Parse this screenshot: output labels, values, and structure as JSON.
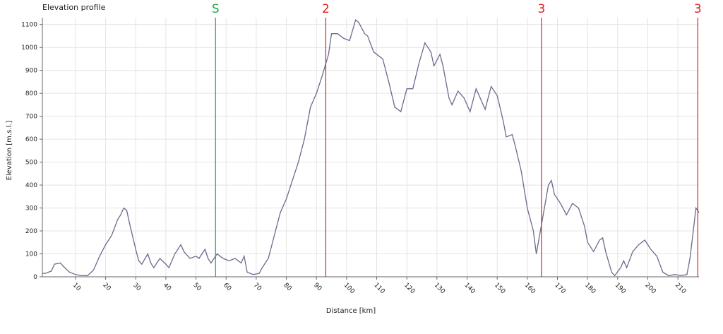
{
  "chart_data": {
    "type": "line",
    "title": "Elevation profile",
    "xlabel": "Distance [km]",
    "ylabel": "Elevation [m.s.l.]",
    "xlim": [
      -1,
      217
    ],
    "ylim": [
      0,
      1130
    ],
    "xticks": [
      10,
      20,
      30,
      40,
      50,
      60,
      70,
      80,
      90,
      100,
      110,
      120,
      130,
      140,
      150,
      160,
      170,
      180,
      190,
      200,
      210
    ],
    "yticks": [
      0,
      100,
      200,
      300,
      400,
      500,
      600,
      700,
      800,
      900,
      1000,
      1100
    ],
    "grid": true,
    "markers": [
      {
        "label": "S",
        "x": 56.5,
        "color": "#22aa44"
      },
      {
        "label": "2",
        "x": 93.1,
        "color": "#dd2222"
      },
      {
        "label": "3",
        "x": 164.7,
        "color": "#dd2222"
      },
      {
        "label": "3",
        "x": 216.6,
        "color": "#dd2222"
      }
    ],
    "series": [
      {
        "color": "#6a6a8e",
        "x": [
          -1,
          0,
          2,
          3,
          5,
          6,
          8,
          10,
          12,
          14,
          16,
          18,
          20,
          22,
          24,
          25,
          26,
          27,
          28,
          30,
          31,
          32,
          34,
          35,
          36,
          38,
          40,
          41,
          43,
          45,
          46,
          48,
          50,
          51,
          53,
          54,
          55,
          57,
          59,
          61,
          63,
          65,
          66,
          67,
          69,
          71,
          72,
          74,
          76,
          78,
          80,
          82,
          84,
          86,
          88,
          90,
          92,
          94,
          95,
          97,
          99,
          101,
          103,
          104,
          106,
          107,
          109,
          111,
          112,
          114,
          116,
          118,
          120,
          122,
          124,
          126,
          128,
          129,
          131,
          132,
          134,
          135,
          137,
          139,
          141,
          143,
          144,
          146,
          148,
          150,
          152,
          153,
          155,
          156,
          158,
          160,
          162,
          163,
          165,
          167,
          168,
          169,
          171,
          173,
          175,
          177,
          179,
          180,
          182,
          184,
          185,
          186,
          188,
          189,
          191,
          192,
          193,
          195,
          197,
          199,
          201,
          203,
          205,
          207,
          209,
          211,
          213,
          214,
          215,
          216,
          217
        ],
        "values": [
          15,
          15,
          25,
          55,
          60,
          45,
          20,
          10,
          5,
          5,
          30,
          90,
          140,
          180,
          250,
          270,
          300,
          290,
          230,
          120,
          70,
          55,
          100,
          60,
          40,
          80,
          55,
          40,
          100,
          140,
          110,
          80,
          90,
          80,
          120,
          80,
          60,
          100,
          80,
          70,
          80,
          60,
          90,
          20,
          10,
          15,
          40,
          80,
          180,
          280,
          340,
          420,
          500,
          600,
          740,
          800,
          880,
          970,
          1060,
          1060,
          1040,
          1030,
          1120,
          1110,
          1060,
          1050,
          980,
          960,
          950,
          850,
          740,
          720,
          820,
          820,
          930,
          1020,
          980,
          920,
          970,
          920,
          780,
          750,
          810,
          780,
          720,
          820,
          790,
          730,
          830,
          790,
          680,
          610,
          620,
          570,
          460,
          300,
          200,
          100,
          250,
          400,
          420,
          360,
          320,
          270,
          320,
          300,
          220,
          150,
          110,
          160,
          170,
          110,
          20,
          5,
          40,
          70,
          40,
          110,
          140,
          160,
          120,
          90,
          20,
          5,
          10,
          5,
          10,
          80,
          190,
          300,
          280
        ]
      }
    ]
  }
}
